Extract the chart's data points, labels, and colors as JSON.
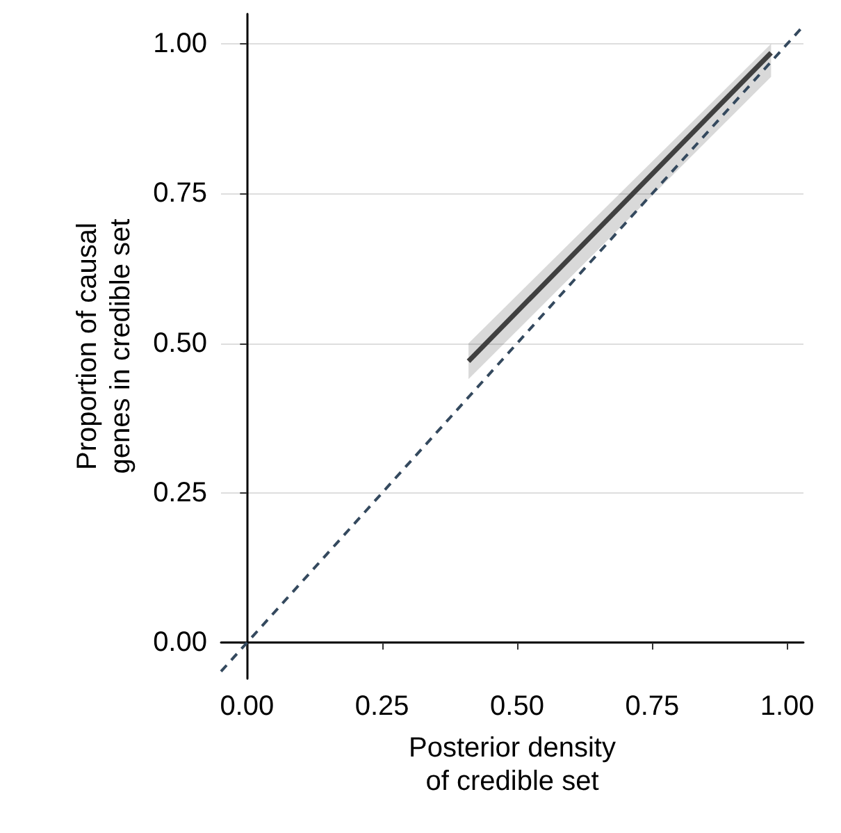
{
  "chart_data": {
    "type": "line",
    "xlabel": "Posterior density\nof credible set",
    "ylabel": "Proportion of causal\ngenes in credible set",
    "xlim": [
      -0.048,
      1.03
    ],
    "ylim": [
      -0.06,
      1.05
    ],
    "xticks": [
      {
        "value": 0,
        "label": "0.00"
      },
      {
        "value": 0.25,
        "label": "0.25"
      },
      {
        "value": 0.5,
        "label": "0.50"
      },
      {
        "value": 0.75,
        "label": "0.75"
      },
      {
        "value": 1,
        "label": "1.00"
      }
    ],
    "yticks": [
      {
        "value": 0,
        "label": "0.00"
      },
      {
        "value": 0.25,
        "label": "0.25"
      },
      {
        "value": 0.5,
        "label": "0.50"
      },
      {
        "value": 0.75,
        "label": "0.75"
      },
      {
        "value": 1,
        "label": "1.00"
      }
    ],
    "grid": "y",
    "marker": "none",
    "series": [
      {
        "color": "#404040",
        "x": [
          0.41,
          0.97
        ],
        "values": [
          0.47,
          0.985
        ],
        "lower": [
          0.44,
          0.945
        ],
        "upper": [
          0.5,
          1.0
        ]
      },
      {
        "color": "#34495e",
        "line_style": "dashed",
        "x": [
          -0.048,
          1.03
        ],
        "values": [
          -0.048,
          1.03
        ]
      }
    ]
  }
}
